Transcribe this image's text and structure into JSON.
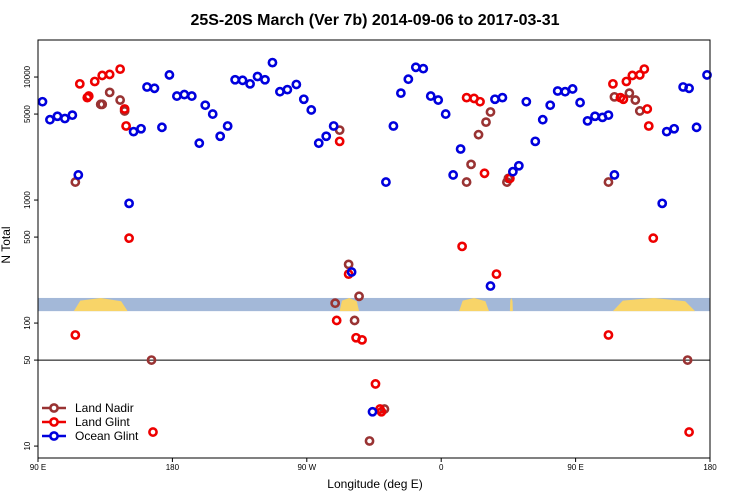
{
  "chart_data": {
    "type": "scatter",
    "title": "25S-20S March (Ver 7b)   2014-09-06 to 2017-03-31",
    "xlabel": "Longitude (deg E)",
    "ylabel": "N Total",
    "y_scale": "log",
    "ylim": [
      8,
      20000
    ],
    "xlim": [
      0,
      450
    ],
    "x_ticks": [
      {
        "value": 0,
        "label": "90 E"
      },
      {
        "value": 90,
        "label": "180"
      },
      {
        "value": 180,
        "label": "90 W"
      },
      {
        "value": 270,
        "label": "0"
      },
      {
        "value": 360,
        "label": "90 E"
      },
      {
        "value": 450,
        "label": "180"
      }
    ],
    "y_ticks": [
      10,
      50,
      100,
      500,
      1000,
      5000,
      10000
    ],
    "reference_line": 50,
    "legend_position": "bottom-left",
    "colors": {
      "land_nadir": "#993333",
      "land_glint": "#ee0000",
      "ocean_glint": "#0000dd",
      "map_ocean": "#a3b8d8",
      "map_land": "#f8d468",
      "refline": "#000000",
      "frame": "#000000"
    },
    "series": [
      {
        "name": "Land Nadir",
        "key": "land_nadir",
        "points": [
          {
            "x": 25,
            "y": 1400
          },
          {
            "x": 42,
            "y": 6000
          },
          {
            "x": 43,
            "y": 6000
          },
          {
            "x": 48,
            "y": 7500
          },
          {
            "x": 55,
            "y": 6500
          },
          {
            "x": 58,
            "y": 5300
          },
          {
            "x": 76,
            "y": 50
          },
          {
            "x": 202,
            "y": 3700
          },
          {
            "x": 208,
            "y": 300
          },
          {
            "x": 199,
            "y": 145
          },
          {
            "x": 212,
            "y": 105
          },
          {
            "x": 215,
            "y": 165
          },
          {
            "x": 232,
            "y": 20
          },
          {
            "x": 222,
            "y": 11
          },
          {
            "x": 287,
            "y": 1400
          },
          {
            "x": 290,
            "y": 1950
          },
          {
            "x": 295,
            "y": 3400
          },
          {
            "x": 300,
            "y": 4300
          },
          {
            "x": 303,
            "y": 5200
          },
          {
            "x": 314,
            "y": 1400
          },
          {
            "x": 315,
            "y": 1500
          },
          {
            "x": 382,
            "y": 1400
          },
          {
            "x": 386,
            "y": 6900
          },
          {
            "x": 396,
            "y": 7400
          },
          {
            "x": 400,
            "y": 6500
          },
          {
            "x": 403,
            "y": 5300
          },
          {
            "x": 435,
            "y": 50
          }
        ]
      },
      {
        "name": "Land Glint",
        "key": "land_glint",
        "points": [
          {
            "x": 25,
            "y": 80
          },
          {
            "x": 28,
            "y": 8800
          },
          {
            "x": 33,
            "y": 6800
          },
          {
            "x": 34,
            "y": 7000
          },
          {
            "x": 38,
            "y": 9200
          },
          {
            "x": 43,
            "y": 10300
          },
          {
            "x": 48,
            "y": 10500
          },
          {
            "x": 55,
            "y": 11600
          },
          {
            "x": 58,
            "y": 5500
          },
          {
            "x": 59,
            "y": 4000
          },
          {
            "x": 61,
            "y": 490
          },
          {
            "x": 77,
            "y": 13
          },
          {
            "x": 202,
            "y": 3000
          },
          {
            "x": 200,
            "y": 105
          },
          {
            "x": 208,
            "y": 250
          },
          {
            "x": 213,
            "y": 76
          },
          {
            "x": 217,
            "y": 73
          },
          {
            "x": 226,
            "y": 32
          },
          {
            "x": 229,
            "y": 20
          },
          {
            "x": 230,
            "y": 19
          },
          {
            "x": 284,
            "y": 420
          },
          {
            "x": 287,
            "y": 6800
          },
          {
            "x": 292,
            "y": 6700
          },
          {
            "x": 296,
            "y": 6300
          },
          {
            "x": 299,
            "y": 1650
          },
          {
            "x": 307,
            "y": 250
          },
          {
            "x": 316,
            "y": 1500
          },
          {
            "x": 382,
            "y": 80
          },
          {
            "x": 385,
            "y": 8800
          },
          {
            "x": 390,
            "y": 6800
          },
          {
            "x": 392,
            "y": 6600
          },
          {
            "x": 394,
            "y": 9200
          },
          {
            "x": 398,
            "y": 10300
          },
          {
            "x": 403,
            "y": 10400
          },
          {
            "x": 406,
            "y": 11600
          },
          {
            "x": 408,
            "y": 5500
          },
          {
            "x": 409,
            "y": 4000
          },
          {
            "x": 412,
            "y": 490
          },
          {
            "x": 436,
            "y": 13
          }
        ]
      },
      {
        "name": "Ocean Glint",
        "key": "ocean_glint",
        "points": [
          {
            "x": 3,
            "y": 6300
          },
          {
            "x": 8,
            "y": 4500
          },
          {
            "x": 13,
            "y": 4800
          },
          {
            "x": 18,
            "y": 4600
          },
          {
            "x": 23,
            "y": 4900
          },
          {
            "x": 27,
            "y": 1600
          },
          {
            "x": 61,
            "y": 940
          },
          {
            "x": 64,
            "y": 3600
          },
          {
            "x": 69,
            "y": 3800
          },
          {
            "x": 73,
            "y": 8300
          },
          {
            "x": 78,
            "y": 8100
          },
          {
            "x": 83,
            "y": 3900
          },
          {
            "x": 88,
            "y": 10400
          },
          {
            "x": 93,
            "y": 7000
          },
          {
            "x": 98,
            "y": 7200
          },
          {
            "x": 103,
            "y": 7000
          },
          {
            "x": 108,
            "y": 2900
          },
          {
            "x": 112,
            "y": 5900
          },
          {
            "x": 117,
            "y": 5000
          },
          {
            "x": 122,
            "y": 3300
          },
          {
            "x": 127,
            "y": 4000
          },
          {
            "x": 132,
            "y": 9500
          },
          {
            "x": 137,
            "y": 9400
          },
          {
            "x": 142,
            "y": 8800
          },
          {
            "x": 147,
            "y": 10100
          },
          {
            "x": 152,
            "y": 9500
          },
          {
            "x": 157,
            "y": 13100
          },
          {
            "x": 162,
            "y": 7600
          },
          {
            "x": 167,
            "y": 7900
          },
          {
            "x": 173,
            "y": 8700
          },
          {
            "x": 178,
            "y": 6600
          },
          {
            "x": 183,
            "y": 5400
          },
          {
            "x": 188,
            "y": 2900
          },
          {
            "x": 193,
            "y": 3300
          },
          {
            "x": 198,
            "y": 4000
          },
          {
            "x": 210,
            "y": 260
          },
          {
            "x": 233,
            "y": 1400
          },
          {
            "x": 238,
            "y": 4000
          },
          {
            "x": 243,
            "y": 7400
          },
          {
            "x": 248,
            "y": 9600
          },
          {
            "x": 253,
            "y": 12000
          },
          {
            "x": 258,
            "y": 11700
          },
          {
            "x": 263,
            "y": 7000
          },
          {
            "x": 268,
            "y": 6500
          },
          {
            "x": 273,
            "y": 5000
          },
          {
            "x": 278,
            "y": 1600
          },
          {
            "x": 283,
            "y": 2600
          },
          {
            "x": 303,
            "y": 200
          },
          {
            "x": 306,
            "y": 6600
          },
          {
            "x": 311,
            "y": 6800
          },
          {
            "x": 318,
            "y": 1700
          },
          {
            "x": 322,
            "y": 1900
          },
          {
            "x": 327,
            "y": 6300
          },
          {
            "x": 333,
            "y": 3000
          },
          {
            "x": 338,
            "y": 4500
          },
          {
            "x": 343,
            "y": 5900
          },
          {
            "x": 348,
            "y": 7700
          },
          {
            "x": 353,
            "y": 7600
          },
          {
            "x": 358,
            "y": 8000
          },
          {
            "x": 363,
            "y": 6200
          },
          {
            "x": 368,
            "y": 4400
          },
          {
            "x": 373,
            "y": 4800
          },
          {
            "x": 378,
            "y": 4700
          },
          {
            "x": 382,
            "y": 4900
          },
          {
            "x": 386,
            "y": 1600
          },
          {
            "x": 418,
            "y": 940
          },
          {
            "x": 421,
            "y": 3600
          },
          {
            "x": 426,
            "y": 3800
          },
          {
            "x": 432,
            "y": 8300
          },
          {
            "x": 436,
            "y": 8100
          },
          {
            "x": 441,
            "y": 3900
          },
          {
            "x": 448,
            "y": 10400
          },
          {
            "x": 224,
            "y": 19
          }
        ]
      }
    ],
    "map_strip": {
      "y_top": 160,
      "y_bottom": 125,
      "land_spans": [
        [
          24,
          60
        ],
        [
          202,
          215
        ],
        [
          282,
          302
        ],
        [
          316,
          318
        ],
        [
          385,
          440
        ]
      ]
    }
  }
}
